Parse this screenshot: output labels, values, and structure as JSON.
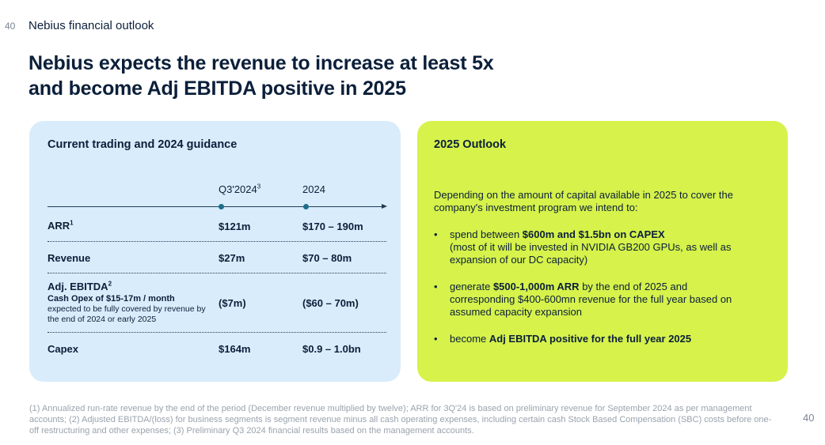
{
  "page": {
    "number": "40",
    "section": "Nebius financial outlook"
  },
  "title": {
    "line1": "Nebius expects the revenue to increase at least 5x",
    "line2": "and become Adj EBITDA positive in 2025"
  },
  "left_panel": {
    "heading": "Current trading and 2024 guidance",
    "columns": {
      "q3": "Q3'2024",
      "q3_sup": "3",
      "y2024": "2024"
    },
    "rows": {
      "arr": {
        "label": "ARR",
        "sup": "1",
        "q3": "$121m",
        "y2024": "$170 – 190m"
      },
      "revenue": {
        "label": "Revenue",
        "q3": "$27m",
        "y2024": "$70 – 80m"
      },
      "ebitda": {
        "label": "Adj. EBITDA",
        "sup": "2",
        "sub1": "Cash Opex of $15-17m / month",
        "sub2": "expected to be fully covered by revenue by the end of 2024 or early 2025",
        "q3": "($7m)",
        "y2024": "($60 – 70m)"
      },
      "capex": {
        "label": "Capex",
        "q3": "$164m",
        "y2024": "$0.9 – 1.0bn"
      }
    }
  },
  "right_panel": {
    "heading": "2025 Outlook",
    "intro": "Depending on the amount of capital available in 2025 to cover the company's investment program we intend to:",
    "bullet_mark": "•",
    "bullets": [
      {
        "pre": "spend between ",
        "bold": "$600m and $1.5bn on CAPEX",
        "post": "(most of it will be invested in NVIDIA GB200 GPUs, as well as expansion of our DC capacity)"
      },
      {
        "pre": "generate ",
        "bold": "$500-1,000m ARR",
        "post": " by the end of 2025 and corresponding $400-600mn revenue for the full year based on assumed capacity expansion"
      },
      {
        "pre": "become ",
        "bold": "Adj EBITDA positive for the full year 2025",
        "post": ""
      }
    ]
  },
  "footnote": "(1) Annualized run-rate revenue by the end of the period (December revenue multiplied by twelve); ARR for 3Q'24 is based on preliminary revenue for September 2024 as per management accounts; (2) Adjusted EBITDA/(loss) for business segments is segment revenue minus all cash operating expenses, including certain cash Stock Based Compensation (SBC) costs before one-off restructuring and other expenses; (3) Preliminary Q3 2024 financial results based on the management accounts.",
  "colors": {
    "left_panel_bg": "#d9ecfb",
    "right_panel_bg": "#d6f24b",
    "text": "#0b1f3a",
    "dot": "#1b6e8a"
  }
}
